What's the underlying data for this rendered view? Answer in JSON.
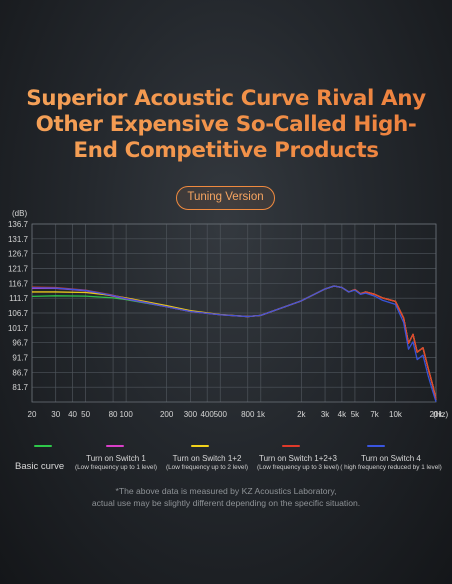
{
  "headline": {
    "lines": [
      "Superior Acoustic Curve Rival Any",
      "Other Expensive So-Called High-",
      "End Competitive Products"
    ]
  },
  "badge": "Tuning Version",
  "chart_data": {
    "type": "line",
    "ylabel": "(dB)",
    "xlabel_unit": "(Hz)",
    "x_scale": "log",
    "xlim": [
      20,
      20000
    ],
    "ylim": [
      76.7,
      136.7
    ],
    "y_ticks": [
      136.7,
      131.7,
      126.7,
      121.7,
      116.7,
      111.7,
      106.7,
      101.7,
      96.7,
      91.7,
      86.7,
      81.7
    ],
    "y_tick_labels": [
      "136.7",
      "131.7",
      "126.7",
      "121.7",
      "116.7",
      "111.7",
      "106.7",
      "101.7",
      "96.7",
      "91.7",
      "86.7",
      "81.7"
    ],
    "x_ticks": [
      20,
      30,
      40,
      50,
      80,
      100,
      200,
      300,
      400,
      500,
      800,
      1000,
      2000,
      3000,
      4000,
      5000,
      7000,
      10000,
      20000
    ],
    "x_tick_labels": [
      "20",
      "30",
      "40",
      "50",
      "80",
      "100",
      "200",
      "300",
      "400",
      "500",
      "800",
      "1k",
      "2k",
      "3k",
      "4k",
      "5k",
      "7k",
      "10k",
      "20k"
    ],
    "grid": true,
    "series": [
      {
        "name": "Basic curve",
        "color": "#2ec84a",
        "points": [
          [
            20,
            112.3
          ],
          [
            30,
            112.5
          ],
          [
            50,
            112.4
          ],
          [
            80,
            111.8
          ],
          [
            100,
            111.2
          ],
          [
            200,
            108.8
          ],
          [
            300,
            107.2
          ],
          [
            500,
            106.1
          ],
          [
            800,
            105.5
          ],
          [
            1000,
            105.9
          ],
          [
            2000,
            110.8
          ],
          [
            3000,
            114.8
          ],
          [
            3500,
            115.8
          ],
          [
            4000,
            115.3
          ],
          [
            4500,
            113.8
          ],
          [
            5000,
            114.6
          ],
          [
            5500,
            113.2
          ],
          [
            6000,
            113.8
          ],
          [
            7000,
            113.0
          ],
          [
            8000,
            111.8
          ],
          [
            10000,
            110.6
          ],
          [
            11500,
            105.0
          ],
          [
            12500,
            96.5
          ],
          [
            13500,
            99.5
          ],
          [
            14500,
            93.5
          ],
          [
            16000,
            95.0
          ],
          [
            17500,
            88.0
          ],
          [
            19000,
            82.0
          ],
          [
            20000,
            77.5
          ]
        ]
      },
      {
        "name": "Turn on Switch 1",
        "color": "#d93fc8",
        "points": [
          [
            20,
            115.0
          ],
          [
            30,
            115.0
          ],
          [
            50,
            114.2
          ],
          [
            80,
            112.4
          ],
          [
            100,
            111.4
          ],
          [
            200,
            108.8
          ],
          [
            300,
            107.2
          ],
          [
            500,
            106.1
          ],
          [
            800,
            105.5
          ],
          [
            1000,
            105.9
          ],
          [
            2000,
            110.8
          ],
          [
            3000,
            114.8
          ],
          [
            3500,
            115.8
          ],
          [
            4000,
            115.3
          ],
          [
            4500,
            113.8
          ],
          [
            5000,
            114.6
          ],
          [
            5500,
            113.2
          ],
          [
            6000,
            113.8
          ],
          [
            7000,
            113.0
          ],
          [
            8000,
            111.8
          ],
          [
            10000,
            110.6
          ],
          [
            11500,
            105.0
          ],
          [
            12500,
            96.5
          ],
          [
            13500,
            99.5
          ],
          [
            14500,
            93.5
          ],
          [
            16000,
            95.0
          ],
          [
            17500,
            88.0
          ],
          [
            19000,
            82.0
          ],
          [
            20000,
            77.5
          ]
        ]
      },
      {
        "name": "Turn on Switch 1+2",
        "color": "#f2d21b",
        "points": [
          [
            20,
            113.8
          ],
          [
            30,
            113.8
          ],
          [
            50,
            113.6
          ],
          [
            80,
            112.6
          ],
          [
            100,
            111.8
          ],
          [
            200,
            109.2
          ],
          [
            300,
            107.5
          ],
          [
            500,
            106.2
          ],
          [
            800,
            105.5
          ],
          [
            1000,
            105.9
          ],
          [
            2000,
            110.8
          ],
          [
            3000,
            114.8
          ],
          [
            3500,
            115.8
          ],
          [
            4000,
            115.3
          ],
          [
            4500,
            113.8
          ],
          [
            5000,
            114.6
          ],
          [
            5500,
            113.2
          ],
          [
            6000,
            113.8
          ],
          [
            7000,
            113.0
          ],
          [
            8000,
            111.8
          ],
          [
            10000,
            110.6
          ],
          [
            11500,
            105.0
          ],
          [
            12500,
            96.5
          ],
          [
            13500,
            99.5
          ],
          [
            14500,
            93.5
          ],
          [
            16000,
            95.0
          ],
          [
            17500,
            88.0
          ],
          [
            19000,
            82.0
          ],
          [
            20000,
            77.5
          ]
        ]
      },
      {
        "name": "Turn on Switch 1+2+3",
        "color": "#e03a2a",
        "points": [
          [
            20,
            115.4
          ],
          [
            30,
            115.3
          ],
          [
            50,
            114.4
          ],
          [
            80,
            112.7
          ],
          [
            100,
            111.6
          ],
          [
            200,
            108.8
          ],
          [
            300,
            107.2
          ],
          [
            500,
            106.1
          ],
          [
            800,
            105.5
          ],
          [
            1000,
            105.9
          ],
          [
            2000,
            110.8
          ],
          [
            3000,
            114.8
          ],
          [
            3500,
            115.8
          ],
          [
            4000,
            115.3
          ],
          [
            4500,
            113.8
          ],
          [
            5000,
            114.6
          ],
          [
            5500,
            113.2
          ],
          [
            6000,
            113.8
          ],
          [
            7000,
            113.0
          ],
          [
            8000,
            111.8
          ],
          [
            10000,
            110.6
          ],
          [
            11500,
            105.0
          ],
          [
            12500,
            96.5
          ],
          [
            13500,
            99.5
          ],
          [
            14500,
            93.5
          ],
          [
            16000,
            95.0
          ],
          [
            17500,
            88.0
          ],
          [
            19000,
            82.0
          ],
          [
            20000,
            77.5
          ]
        ]
      },
      {
        "name": "Turn on Switch 4",
        "color": "#3a55e0",
        "points": [
          [
            20,
            115.2
          ],
          [
            30,
            115.1
          ],
          [
            50,
            114.3
          ],
          [
            80,
            112.6
          ],
          [
            100,
            111.5
          ],
          [
            200,
            108.8
          ],
          [
            300,
            107.2
          ],
          [
            500,
            106.1
          ],
          [
            800,
            105.5
          ],
          [
            1000,
            105.9
          ],
          [
            2000,
            110.8
          ],
          [
            3000,
            114.8
          ],
          [
            3500,
            115.8
          ],
          [
            4000,
            115.3
          ],
          [
            4500,
            113.8
          ],
          [
            5000,
            114.4
          ],
          [
            5500,
            113.0
          ],
          [
            6000,
            113.4
          ],
          [
            7000,
            112.4
          ],
          [
            8000,
            111.0
          ],
          [
            10000,
            109.6
          ],
          [
            11500,
            103.5
          ],
          [
            12500,
            94.5
          ],
          [
            13500,
            97.0
          ],
          [
            14500,
            91.0
          ],
          [
            16000,
            92.5
          ],
          [
            17500,
            85.5
          ],
          [
            19000,
            80.0
          ],
          [
            20000,
            76.8
          ]
        ]
      }
    ]
  },
  "legend": {
    "basic_label": "Basic curve",
    "items": [
      {
        "color": "#2ec84a",
        "main": "",
        "sub": ""
      },
      {
        "color": "#d93fc8",
        "main": "Turn on Switch 1",
        "sub": "(Low frequency up to 1 level)"
      },
      {
        "color": "#f2d21b",
        "main": "Turn on Switch 1+2",
        "sub": "(Low frequency up to 2 level)"
      },
      {
        "color": "#e03a2a",
        "main": "Turn on Switch 1+2+3",
        "sub": "(Low frequency up to 3 level)"
      },
      {
        "color": "#3a55e0",
        "main": "Turn on Switch 4",
        "sub": "( high frequency reduced by 1 level)"
      }
    ]
  },
  "footnote": {
    "line1": "*The above data is measured by KZ Acoustics Laboratory,",
    "line2": "actual use may be slightly different depending on the specific situation."
  }
}
